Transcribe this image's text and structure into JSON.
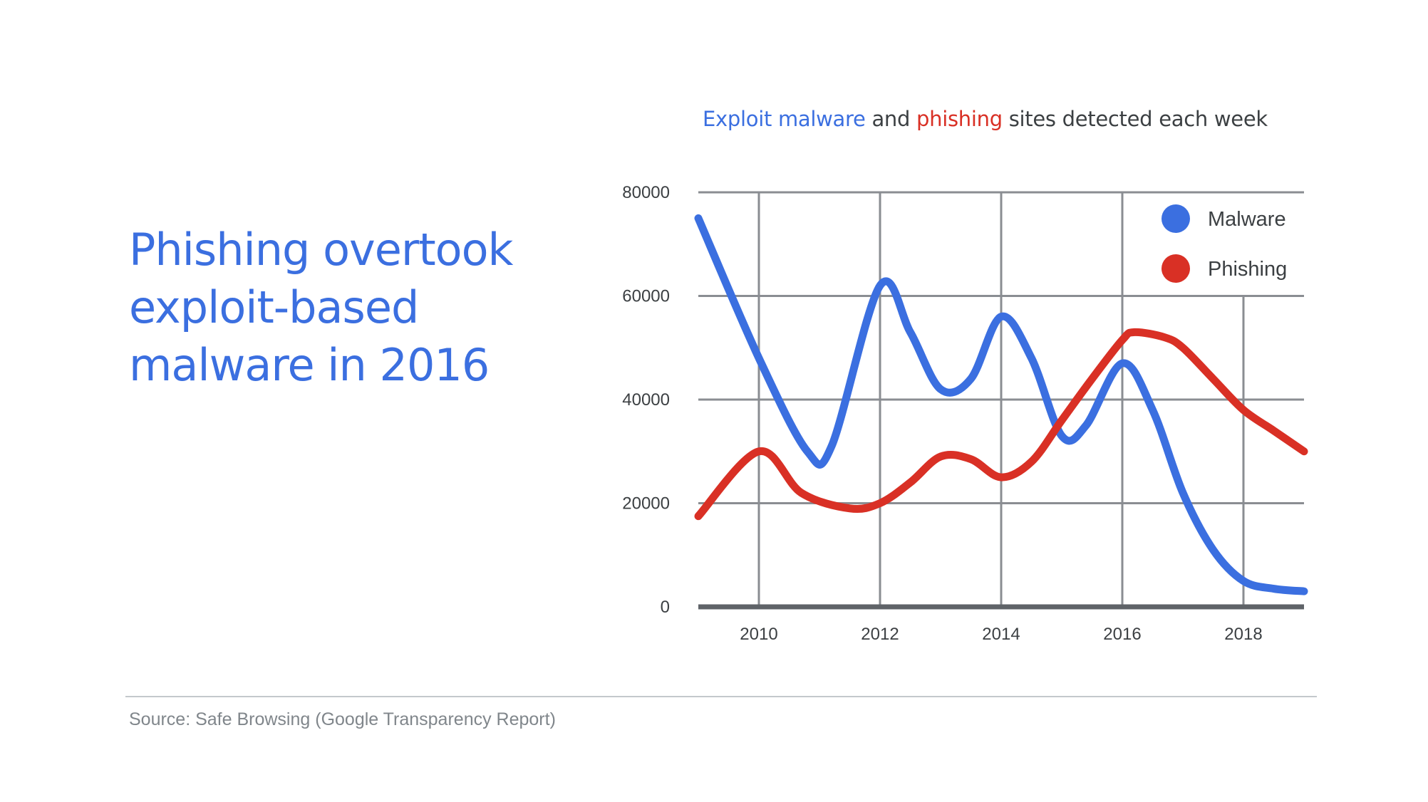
{
  "headline": {
    "lines": [
      "Phishing overtook",
      "exploit-based",
      "malware in 2016"
    ]
  },
  "chart_title": {
    "part1": "Exploit malware",
    "part2": " and ",
    "part3": "phishing",
    "part4": " sites detected each week"
  },
  "source": "Source: Safe Browsing (Google Transparency Report)",
  "colors": {
    "malware": "#3b6fe0",
    "phishing": "#d93025",
    "grid": "#8a8d92",
    "baseline": "#5f6368",
    "text": "#3c4043",
    "source": "#80868b"
  },
  "chart_data": {
    "type": "line",
    "title": "Exploit malware and phishing sites detected each week",
    "xlim": [
      2009,
      2019
    ],
    "ylim": [
      0,
      80000
    ],
    "x_ticks": [
      "2010",
      "2012",
      "2014",
      "2016",
      "2018"
    ],
    "y_ticks": [
      "0",
      "20000",
      "40000",
      "60000",
      "80000"
    ],
    "grid": true,
    "legend": "top-right",
    "series": [
      {
        "name": "Malware",
        "color": "#3b6fe0",
        "x": [
          2009,
          2010,
          2010.8,
          2011.2,
          2012,
          2012.5,
          2013,
          2013.5,
          2014,
          2014.5,
          2015,
          2015.4,
          2016,
          2016.5,
          2017,
          2017.5,
          2018,
          2018.5,
          2019
        ],
        "y": [
          75000,
          48000,
          30000,
          31000,
          62000,
          53000,
          42000,
          44000,
          56000,
          48000,
          33000,
          35000,
          47000,
          38000,
          22000,
          11000,
          5000,
          3500,
          3000
        ]
      },
      {
        "name": "Phishing",
        "color": "#d93025",
        "x": [
          2009,
          2010,
          2010.7,
          2011.5,
          2012,
          2012.5,
          2013,
          2013.5,
          2014,
          2014.5,
          2015,
          2015.5,
          2016,
          2016.2,
          2016.7,
          2017,
          2017.5,
          2018,
          2018.5,
          2019
        ],
        "y": [
          17500,
          30000,
          22000,
          19000,
          20000,
          24000,
          29000,
          28500,
          25000,
          28000,
          36000,
          44000,
          51500,
          53000,
          52000,
          50000,
          44000,
          38000,
          34000,
          30000
        ]
      }
    ]
  }
}
